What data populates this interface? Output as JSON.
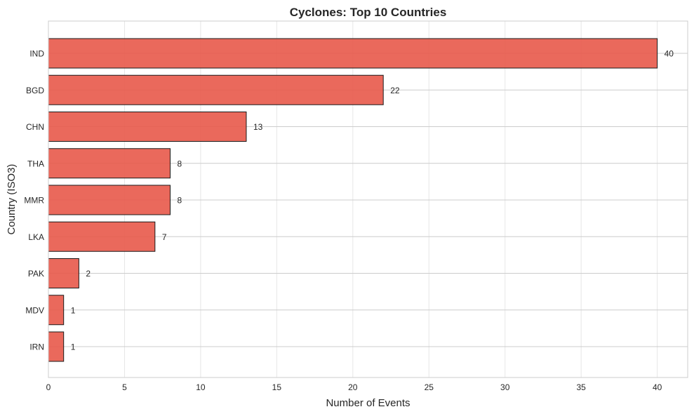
{
  "chart_data": {
    "type": "bar",
    "orientation": "horizontal",
    "title": "Cyclones: Top 10 Countries",
    "xlabel": "Number of Events",
    "ylabel": "Country (ISO3)",
    "categories": [
      "IND",
      "BGD",
      "CHN",
      "THA",
      "MMR",
      "LKA",
      "PAK",
      "MDV",
      "IRN"
    ],
    "values": [
      40,
      22,
      13,
      8,
      8,
      7,
      2,
      1,
      1
    ],
    "value_labels": [
      "40",
      "22",
      "13",
      "8",
      "8",
      "7",
      "2",
      "1",
      "1"
    ],
    "xlim": [
      0,
      42
    ],
    "xticks": [
      0,
      5,
      10,
      15,
      20,
      25,
      30,
      35,
      40
    ],
    "xtick_labels": [
      "0",
      "5",
      "10",
      "15",
      "20",
      "25",
      "30",
      "35",
      "40"
    ],
    "grid": true,
    "colors": {
      "bar_fill": "#e8594a",
      "bar_edge": "#1a1a1a"
    }
  }
}
